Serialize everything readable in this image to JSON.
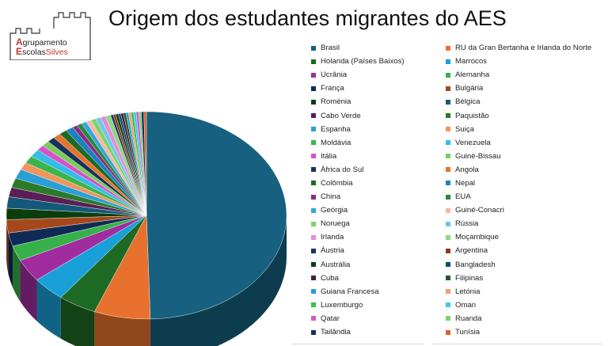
{
  "title": "Origem dos estudantes migrantes do AES",
  "logo": {
    "line1_cap": "A",
    "line1_rest": "grupamento",
    "line2_cap": "E",
    "line2_mid": "scolas",
    "line2_end": "Silves"
  },
  "chart_data": {
    "type": "pie",
    "title": "Origem dos estudantes migrantes do AES",
    "style": "3d",
    "legend_position": "right",
    "categories": [
      "Brasil",
      "RU da Gran Bertanha e Irlanda do Norte",
      "Holanda (Países Baixos)",
      "Marrocos",
      "Ucrânia",
      "Alemanha",
      "França",
      "Bulgária",
      "Roménia",
      "Bélgica",
      "Cabo Verde",
      "Paquistão",
      "Espanha",
      "Suiça",
      "Moldávia",
      "Venezuela",
      "Itália",
      "Guiné-Bissau",
      "África do Sul",
      "Angola",
      "Colômbia",
      "Nepal",
      "China",
      "EUA",
      "Geórgia",
      "Guiné-Conacri",
      "Noruega",
      "Rússia",
      "Irlanda",
      "Moçambique",
      "Áustria",
      "Argentina",
      "Austrália",
      "Bangladesh",
      "Cuba",
      "Filipinas",
      "Guiana Francesa",
      "Letónia",
      "Luxemburgo",
      "Oman",
      "Qatar",
      "Ruanda",
      "Tailândia",
      "Tunísia"
    ],
    "values": [
      168,
      22,
      15,
      13,
      12,
      8,
      7,
      7,
      6,
      6,
      5,
      5,
      5,
      4,
      4,
      4,
      3,
      3,
      3,
      3,
      3,
      3,
      2,
      2,
      2,
      2,
      2,
      2,
      2,
      2,
      1,
      1,
      1,
      1,
      1,
      1,
      1,
      1,
      1,
      1,
      1,
      1,
      1,
      1
    ],
    "colors": [
      "#17607f",
      "#e8722d",
      "#1d6a24",
      "#1aa0d8",
      "#a12ca0",
      "#36b14a",
      "#0f2a55",
      "#a4481c",
      "#0c3d0c",
      "#14587a",
      "#5a1f55",
      "#2a7a2a",
      "#2a9ed8",
      "#f0955c",
      "#3cb44a",
      "#33bde8",
      "#d94fce",
      "#7acc5c",
      "#15335a",
      "#e8722d",
      "#1d6a24",
      "#1b82c0",
      "#8c2a88",
      "#2a8a3a",
      "#2fa6e0",
      "#f5b8a0",
      "#7ed36b",
      "#6ec7ea",
      "#e58ad8",
      "#8fd780",
      "#18355e",
      "#8a3c1a",
      "#0f3d0f",
      "#0f4f6e",
      "#4a1a46",
      "#245a24",
      "#2a9ed8",
      "#f0a070",
      "#3bbf44",
      "#3fc6ea",
      "#d15ad0",
      "#84cf70",
      "#16315a",
      "#d9622a"
    ]
  },
  "legend": {
    "col1": [
      {
        "label": "Brasil",
        "color": "#17607f"
      },
      {
        "label": "Holanda (Países Baixos)",
        "color": "#1d6a24"
      },
      {
        "label": "Ucrânia",
        "color": "#a12ca0"
      },
      {
        "label": "França",
        "color": "#0f2a55"
      },
      {
        "label": "Roménia",
        "color": "#0c3d0c"
      },
      {
        "label": "Cabo Verde",
        "color": "#5a1f55"
      },
      {
        "label": "Espanha",
        "color": "#2a9ed8"
      },
      {
        "label": "Moldávia",
        "color": "#3cb44a"
      },
      {
        "label": "Itália",
        "color": "#d94fce"
      },
      {
        "label": "África do Sul",
        "color": "#15335a"
      },
      {
        "label": "Colômbia",
        "color": "#1d6a24"
      },
      {
        "label": "China",
        "color": "#8c2a88"
      },
      {
        "label": "Geórgia",
        "color": "#2fa6e0"
      },
      {
        "label": "Noruega",
        "color": "#7ed36b"
      },
      {
        "label": "Irlanda",
        "color": "#e58ad8"
      },
      {
        "label": "Áustria",
        "color": "#18355e"
      },
      {
        "label": "Austrália",
        "color": "#0f3d0f"
      },
      {
        "label": "Cuba",
        "color": "#4a1a46"
      },
      {
        "label": "Guiana Francesa",
        "color": "#2a9ed8"
      },
      {
        "label": "Luxemburgo",
        "color": "#3bbf44"
      },
      {
        "label": "Qatar",
        "color": "#d15ad0"
      },
      {
        "label": "Tailândia",
        "color": "#16315a"
      }
    ],
    "col2": [
      {
        "label": "RU da Gran Bertanha e Irlanda do Norte",
        "color": "#e8722d"
      },
      {
        "label": "Marrocos",
        "color": "#1aa0d8"
      },
      {
        "label": "Alemanha",
        "color": "#36b14a"
      },
      {
        "label": "Bulgária",
        "color": "#a4481c"
      },
      {
        "label": "Bélgica",
        "color": "#14587a"
      },
      {
        "label": "Paquistão",
        "color": "#2a7a2a"
      },
      {
        "label": "Suiça",
        "color": "#f0955c"
      },
      {
        "label": "Venezuela",
        "color": "#33bde8"
      },
      {
        "label": "Guiné-Bissau",
        "color": "#7acc5c"
      },
      {
        "label": "Angola",
        "color": "#e8722d"
      },
      {
        "label": "Nepal",
        "color": "#1b82c0"
      },
      {
        "label": "EUA",
        "color": "#2a8a3a"
      },
      {
        "label": "Guiné-Conacri",
        "color": "#f5b8a0"
      },
      {
        "label": "Rússia",
        "color": "#6ec7ea"
      },
      {
        "label": "Moçambique",
        "color": "#8fd780"
      },
      {
        "label": "Argentina",
        "color": "#8a3c1a"
      },
      {
        "label": "Bangladesh",
        "color": "#0f4f6e"
      },
      {
        "label": "Filipinas",
        "color": "#245a24"
      },
      {
        "label": "Letónia",
        "color": "#f0a070"
      },
      {
        "label": "Oman",
        "color": "#3fc6ea"
      },
      {
        "label": "Ruanda",
        "color": "#84cf70"
      },
      {
        "label": "Tunísia",
        "color": "#d9622a"
      }
    ]
  }
}
